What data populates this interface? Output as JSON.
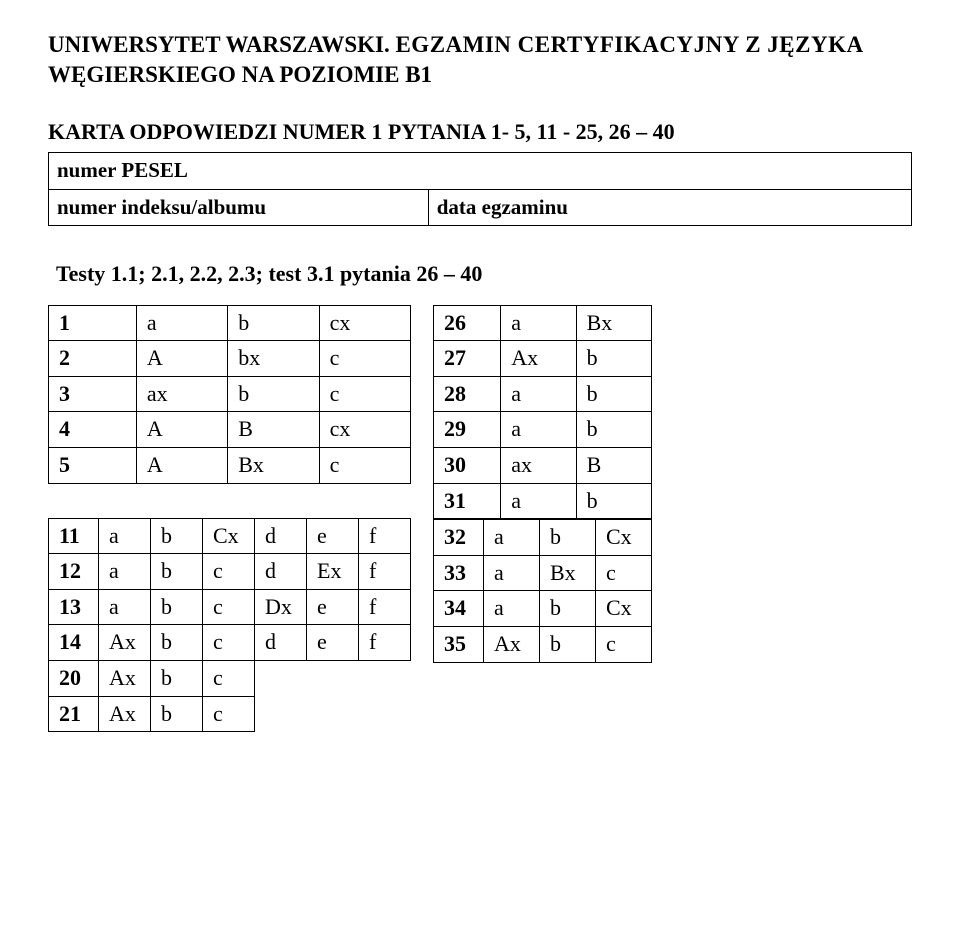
{
  "header": {
    "line1": "UNIWERSYTET WARSZAWSKI.",
    "line2": "EGZAMIN CERTYFIKACYJNY Z JĘZYKA",
    "line3": "WĘGIERSKIEGO   NA POZIOMIE  B1"
  },
  "karta": "KARTA ODPOWIEDZI NUMER 1  PYTANIA 1- 5, 11 - 25, 26 – 40",
  "meta": {
    "pesel_label": "numer PESEL",
    "indeks_label": "numer indeksu/albumu",
    "data_label": "data egzaminu"
  },
  "testy": "Testy 1.1; 2.1, 2.2, 2.3; test 3.1 pytania 26 – 40",
  "leftTop": [
    [
      "1",
      "a",
      "b",
      "cx"
    ],
    [
      "2",
      "A",
      "bx",
      "c"
    ],
    [
      "3",
      "ax",
      "b",
      "c"
    ],
    [
      "4",
      "A",
      "B",
      "cx"
    ],
    [
      "5",
      "A",
      "Bx",
      "c"
    ]
  ],
  "leftBottom": [
    [
      "11",
      "a",
      "b",
      "Cx",
      "d",
      "e",
      "f"
    ],
    [
      "12",
      "a",
      "b",
      "c",
      "d",
      "Ex",
      "f"
    ],
    [
      "13",
      "a",
      "b",
      "c",
      "Dx",
      "e",
      "f"
    ],
    [
      "14",
      "Ax",
      "b",
      "c",
      "d",
      "e",
      "f"
    ],
    [
      "20",
      "Ax",
      "b",
      "c"
    ],
    [
      "21",
      "Ax",
      "b",
      "c"
    ]
  ],
  "rightTop": [
    [
      "26",
      "a",
      "Bx"
    ],
    [
      "27",
      "Ax",
      "b"
    ],
    [
      "28",
      "a",
      "b"
    ],
    [
      "29",
      "a",
      "b"
    ],
    [
      "30",
      "ax",
      "B"
    ],
    [
      "31",
      "a",
      "b"
    ]
  ],
  "rightBottom": [
    [
      "32",
      "a",
      "b",
      "Cx"
    ],
    [
      "33",
      "a",
      "Bx",
      "c"
    ],
    [
      "34",
      "a",
      "b",
      "Cx"
    ],
    [
      "35",
      "Ax",
      "b",
      "c"
    ]
  ]
}
